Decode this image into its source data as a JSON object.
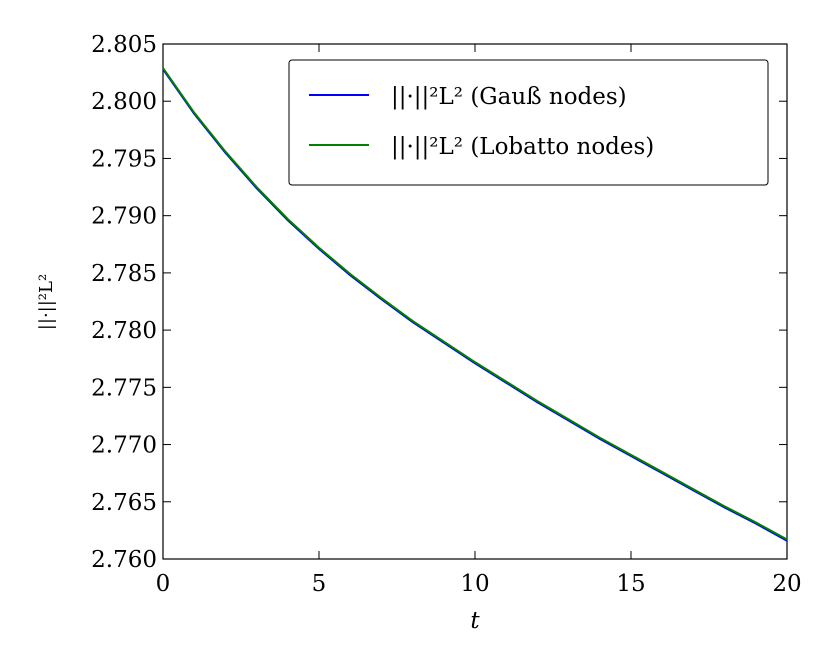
{
  "chart_data": {
    "type": "line",
    "xlabel": "t",
    "ylabel": "||·||²L²",
    "x": [
      0,
      1,
      2,
      3,
      4,
      5,
      6,
      7,
      8,
      9,
      10,
      11,
      12,
      13,
      14,
      15,
      16,
      17,
      18,
      19,
      20
    ],
    "series": [
      {
        "name": "||·||²L²  (Gauß nodes)",
        "color": "#0000ff",
        "values": [
          2.8028,
          2.7989,
          2.7955,
          2.7924,
          2.7896,
          2.7871,
          2.7848,
          2.7827,
          2.7807,
          2.7789,
          2.7771,
          2.7754,
          2.7737,
          2.7721,
          2.7705,
          2.769,
          2.7675,
          2.766,
          2.7645,
          2.7631,
          2.7616
        ]
      },
      {
        "name": "||·||²L²  (Lobatto nodes)",
        "color": "#008000",
        "values": [
          2.8029,
          2.799,
          2.7956,
          2.7925,
          2.7897,
          2.7872,
          2.7849,
          2.7828,
          2.7808,
          2.779,
          2.7772,
          2.7755,
          2.7738,
          2.7722,
          2.7706,
          2.7691,
          2.7676,
          2.7661,
          2.7646,
          2.7632,
          2.7617
        ]
      }
    ],
    "xlim": [
      0,
      20
    ],
    "xticks": [
      0,
      5,
      10,
      15,
      20
    ],
    "ylim": [
      2.76,
      2.805
    ],
    "yticks": [
      {
        "value": 2.76,
        "label": "2.760"
      },
      2.765,
      {
        "value": 2.77,
        "label": "2.770"
      },
      2.775,
      {
        "value": 2.78,
        "label": "2.780"
      },
      2.785,
      {
        "value": 2.79,
        "label": "2.790"
      },
      2.795,
      {
        "value": 2.8,
        "label": "2.800"
      },
      2.805
    ],
    "legend": "upper right"
  }
}
